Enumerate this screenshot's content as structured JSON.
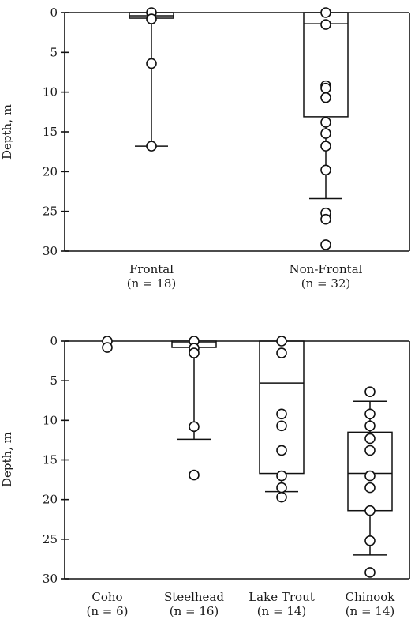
{
  "chart_data": [
    {
      "type": "box",
      "ylabel": "Depth, m",
      "ylim": [
        0,
        30
      ],
      "y_inverted": true,
      "yticks": [
        "0",
        "5",
        "10",
        "15",
        "20",
        "25",
        "30"
      ],
      "groups": [
        {
          "label": "Frontal",
          "n_label": "(n = 18)",
          "whisker_low": 0,
          "q1": 0,
          "median": 0.4,
          "q3": 0.7,
          "whisker_high": 16.8,
          "points": [
            0,
            0.8,
            6.4,
            16.8
          ]
        },
        {
          "label": "Non-Frontal",
          "n_label": "(n = 32)",
          "whisker_low": 0,
          "q1": 0,
          "median": 1.4,
          "q3": 13.1,
          "whisker_high": 23.4,
          "points": [
            0,
            1.5,
            9.2,
            9.5,
            10.7,
            13.8,
            15.2,
            16.8,
            19.8,
            25.2,
            26,
            29.2
          ]
        }
      ]
    },
    {
      "type": "box",
      "ylabel": "Depth, m",
      "ylim": [
        0,
        30
      ],
      "y_inverted": true,
      "yticks": [
        "0",
        "5",
        "10",
        "15",
        "20",
        "25",
        "30"
      ],
      "groups": [
        {
          "label": "Coho",
          "n_label": "(n = 6)",
          "whisker_low": null,
          "q1": null,
          "median": null,
          "q3": null,
          "whisker_high": null,
          "points": [
            0,
            0.8
          ]
        },
        {
          "label": "Steelhead",
          "n_label": "(n = 16)",
          "whisker_low": 0,
          "q1": 0,
          "median": 0.2,
          "q3": 0.8,
          "whisker_high": 12.4,
          "points": [
            0,
            0.9,
            1.5,
            10.8,
            16.9
          ]
        },
        {
          "label": "Lake Trout",
          "n_label": "(n = 14)",
          "whisker_low": 0,
          "q1": 0,
          "median": 5.3,
          "q3": 16.7,
          "whisker_high": 19.0,
          "points": [
            0,
            1.5,
            9.2,
            10.7,
            13.8,
            17.0,
            18.5,
            19.7
          ]
        },
        {
          "label": "Chinook",
          "n_label": "(n = 14)",
          "whisker_low": 7.6,
          "q1": 11.5,
          "median": 16.7,
          "q3": 21.4,
          "whisker_high": 27.0,
          "points": [
            6.4,
            9.2,
            10.7,
            12.3,
            13.8,
            17.0,
            18.5,
            21.4,
            25.2,
            29.2
          ]
        }
      ]
    }
  ]
}
